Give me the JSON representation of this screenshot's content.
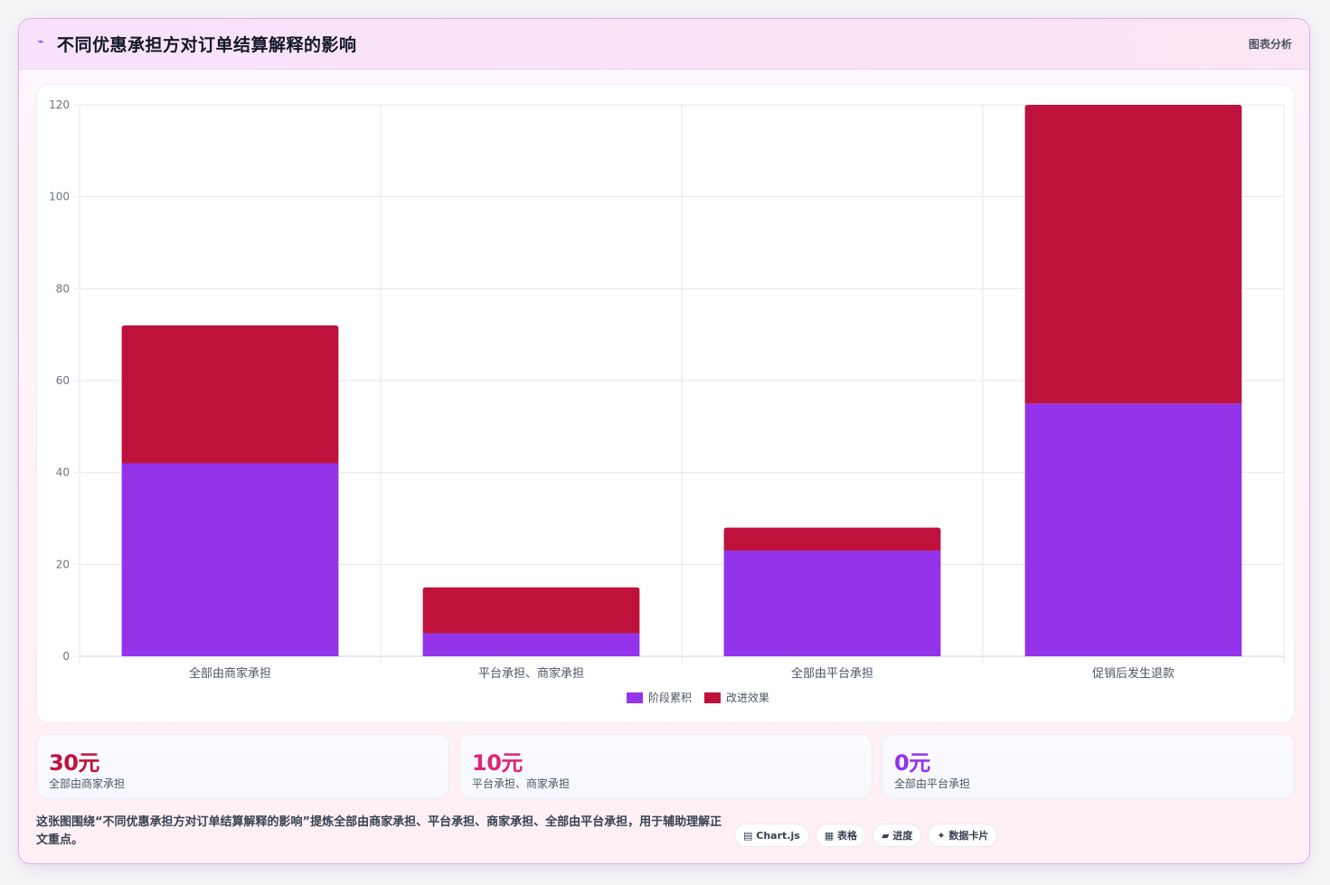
{
  "header": {
    "icon": "chart-trend-icon",
    "title": "不同优惠承担方对订单结算解释的影响",
    "tag": "图表分析"
  },
  "chart_data": {
    "type": "bar",
    "stacked": true,
    "categories": [
      "全部由商家承担",
      "平台承担、商家承担",
      "全部由平台承担",
      "促销后发生退款"
    ],
    "series": [
      {
        "name": "阶段累积",
        "color": "#9333ea",
        "values": [
          42,
          5,
          23,
          55
        ]
      },
      {
        "name": "改进效果",
        "color": "#be123c",
        "values": [
          30,
          10,
          5,
          65
        ]
      }
    ],
    "ylim": [
      0,
      120
    ],
    "yticks": [
      0,
      20,
      40,
      60,
      80,
      100,
      120
    ],
    "grid": true,
    "legend_position": "bottom"
  },
  "kpis": [
    {
      "value": "30元",
      "label": "全部由商家承担",
      "color": "#be123c"
    },
    {
      "value": "10元",
      "label": "平台承担、商家承担",
      "color": "#db2777"
    },
    {
      "value": "0元",
      "label": "全部由平台承担",
      "color": "#9333ea"
    }
  ],
  "footnote": "这张图围绕“不同优惠承担方对订单结算解释的影响”提炼全部由商家承担、平台承担、商家承担、全部由平台承担，用于辅助理解正文重点。",
  "chips": [
    {
      "icon": "chart-icon",
      "glyph": "▤",
      "label": "Chart.js"
    },
    {
      "icon": "table-icon",
      "glyph": "▦",
      "label": "表格"
    },
    {
      "icon": "progress-icon",
      "glyph": "▰",
      "label": "进度"
    },
    {
      "icon": "sparkle-icon",
      "glyph": "✦",
      "label": "数据卡片"
    }
  ]
}
